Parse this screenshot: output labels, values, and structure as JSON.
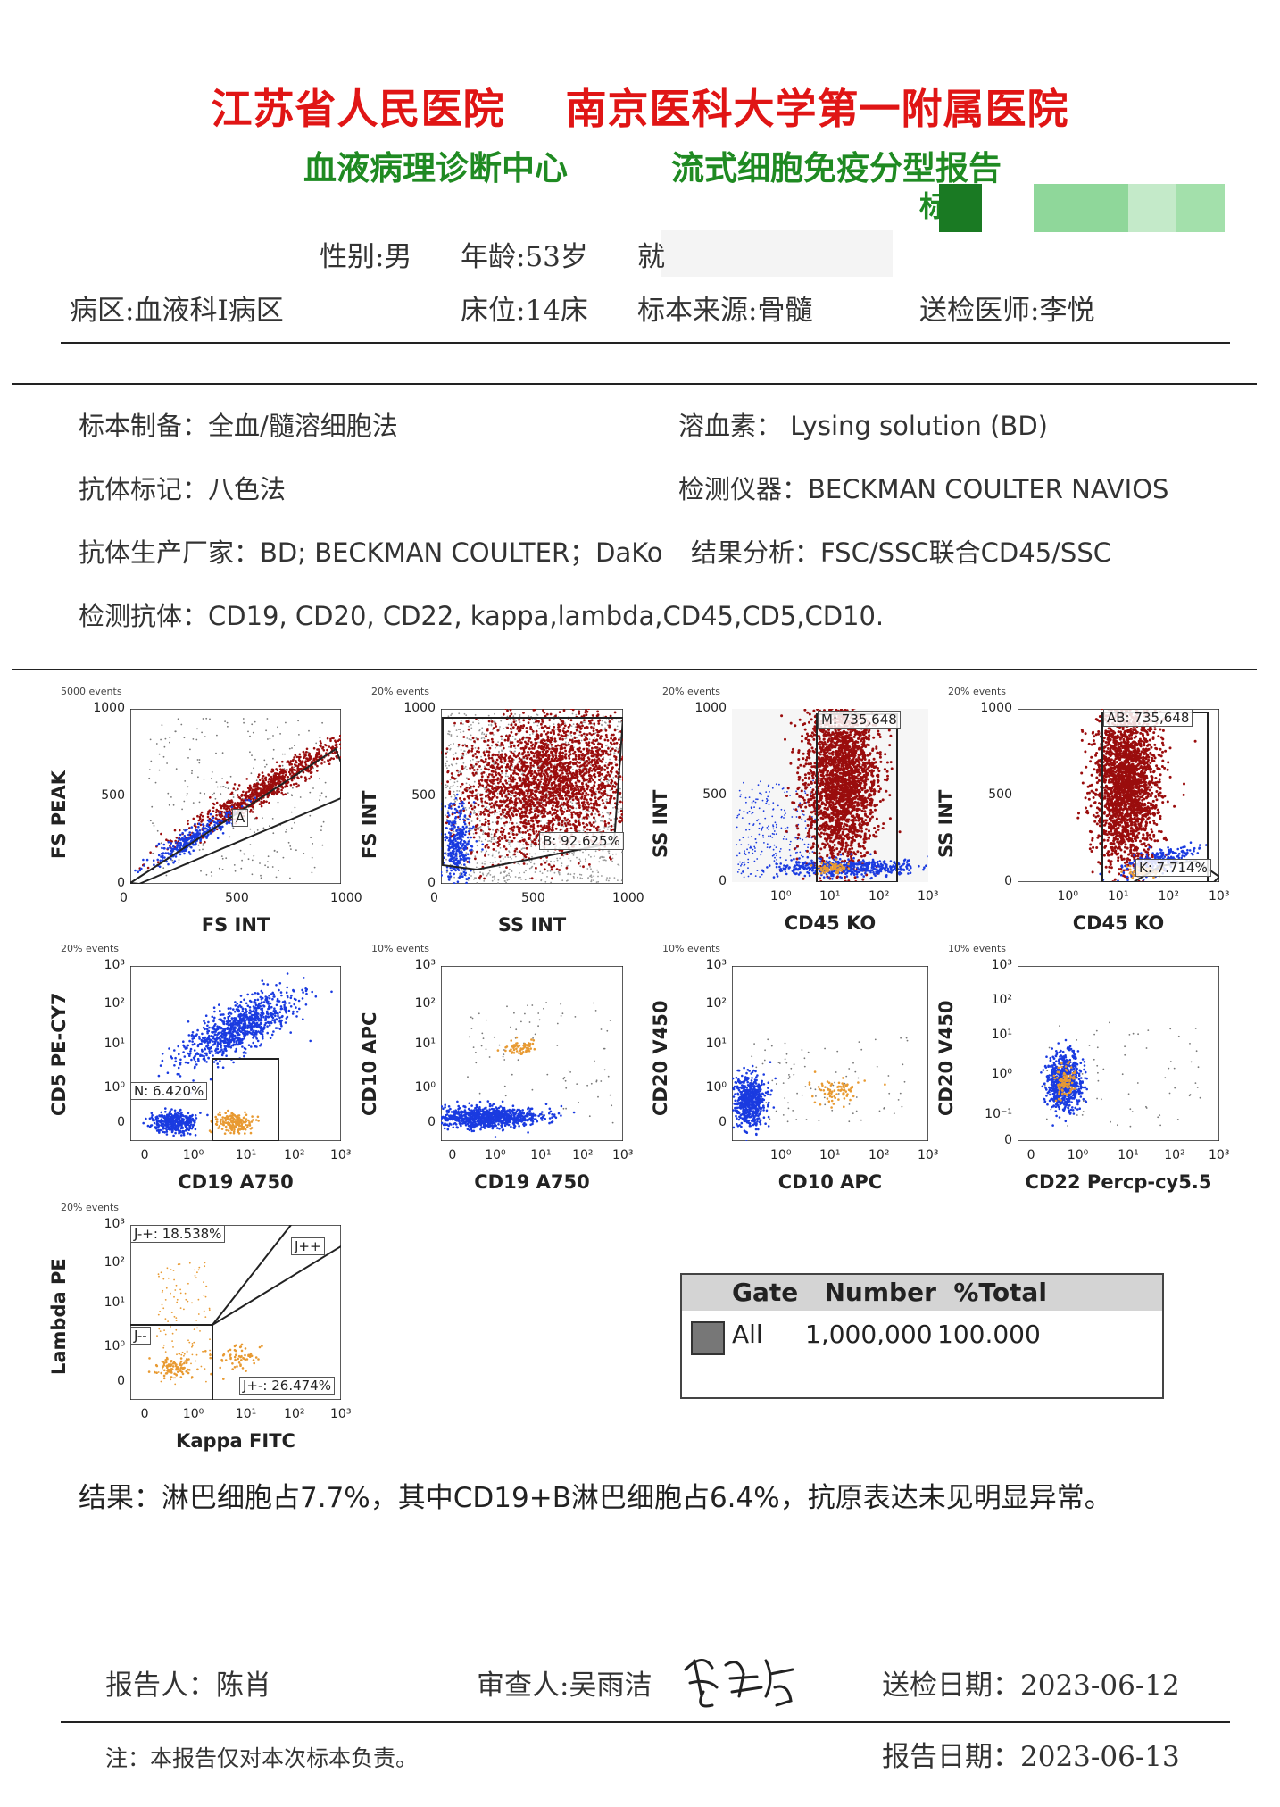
{
  "header": {
    "hospital": "江苏省人民医院    南京医科大学第一附属医院",
    "center": "血液病理诊断中心",
    "report_title": "流式细胞免疫分型报告",
    "partial_char": "标"
  },
  "patient": {
    "sex": "性别:男",
    "age": "年龄:53岁",
    "partial": "就",
    "ward": "病区:血液科I病区",
    "bed": "床位:14床",
    "specimen_source": "标本来源:骨髓",
    "doctor": "送检医师:李悦"
  },
  "method": {
    "prep": "标本制备：全血/髓溶细胞法",
    "lysing": "溶血素： Lysing solution (BD)",
    "label": "抗体标记：八色法",
    "instrument": "检测仪器：BECKMAN COULTER NAVIOS",
    "manufacturer": "抗体生产厂家：BD; BECKMAN COULTER；DaKo",
    "analysis": "结果分析：FSC/SSC联合CD45/SSC",
    "antibodies": "检测抗体：CD19, CD20, CD22, kappa,lambda,CD45,CD5,CD10."
  },
  "plots": {
    "p1": {
      "events": "5000 events",
      "x": "FS INT",
      "y": "FS PEAK",
      "gate": "A"
    },
    "p2": {
      "events": "20% events",
      "x": "SS INT",
      "y": "FS INT",
      "gate": "B: 92.625%"
    },
    "p3": {
      "events": "20% events",
      "x": "CD45 KO",
      "y": "SS INT",
      "gate": "M: 735,648"
    },
    "p4": {
      "events": "20% events",
      "x": "CD45 KO",
      "y": "SS INT",
      "gate": "AB: 735,648",
      "gate2": "K: 7.714%"
    },
    "p5": {
      "events": "20% events",
      "x": "CD19 A750",
      "y": "CD5 PE-CY7",
      "gate": "N: 6.420%"
    },
    "p6": {
      "events": "10% events",
      "x": "CD19 A750",
      "y": "CD10 APC"
    },
    "p7": {
      "events": "10% events",
      "x": "CD10 APC",
      "y": "CD20 V450"
    },
    "p8": {
      "events": "10% events",
      "x": "CD22 Percp-cy5.5",
      "y": "CD20 V450"
    },
    "p9": {
      "events": "20% events",
      "x": "Kappa FITC",
      "y": "Lambda PE",
      "g1": "J-+: 18.538%",
      "g2": "J++",
      "g3": "J--",
      "g4": "J+-: 26.474%"
    }
  },
  "ticks": {
    "lin": [
      "0",
      "500",
      "1000"
    ],
    "logx": [
      "10⁰",
      "10¹",
      "10²",
      "10³"
    ],
    "logx0": [
      "0",
      "10⁰",
      "10¹",
      "10²",
      "10³"
    ],
    "logy": [
      "0",
      "10⁰",
      "10¹",
      "10²",
      "10³"
    ],
    "logy8": [
      "0",
      "10⁻¹",
      "10⁰",
      "10¹",
      "10²",
      "10³"
    ],
    "zero": "0"
  },
  "gate_table": {
    "header": "Gate   Number  %Total",
    "row_gate": "All",
    "row_number": "1,000,000",
    "row_pct": "100.000"
  },
  "result": "结果：淋巴细胞占7.7%，其中CD19+B淋巴细胞占6.4%，抗原表达未见明显异常。",
  "footer": {
    "reporter": "报告人：陈肖",
    "reviewer": "审查人:吴雨洁",
    "send_date": "送检日期：2023-06-12",
    "note": "注：本报告仅对本次标本负责。",
    "report_date": "报告日期：2023-06-13"
  },
  "colors": {
    "hospital": "#e01515",
    "center": "#1f8a22",
    "cells_red": "#9a0d0d",
    "cells_blue": "#1a3be0",
    "cells_orange": "#e89a32"
  }
}
